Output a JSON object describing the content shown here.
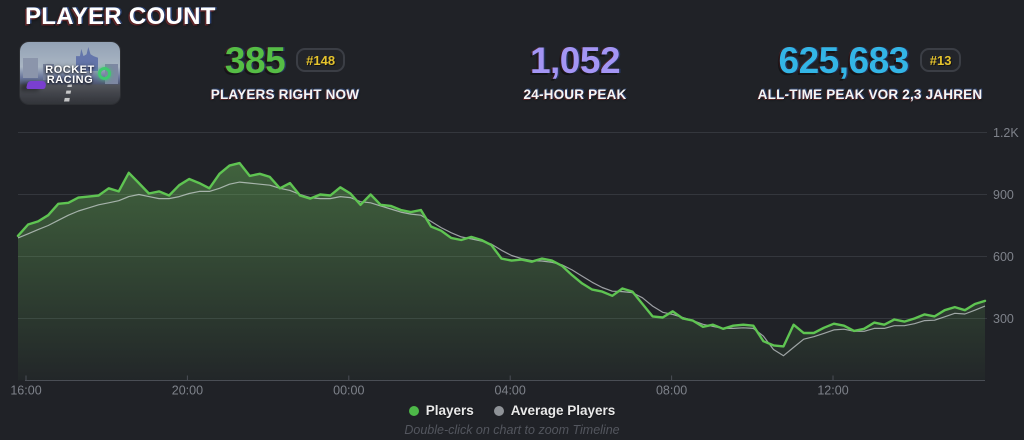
{
  "page": {
    "title": "PLAYER COUNT"
  },
  "game": {
    "name": "Rocket Racing",
    "thumb_line1": "ROCKET",
    "thumb_line2": "RACING"
  },
  "stats": [
    {
      "value": "385",
      "badge": "#148",
      "label": "PLAYERS RIGHT NOW",
      "color": "#55bd45"
    },
    {
      "value": "1,052",
      "badge": "",
      "label": "24-HOUR PEAK",
      "color": "#a495f4"
    },
    {
      "value": "625,683",
      "badge": "#13",
      "label": "ALL-TIME PEAK VOR 2,3 JAHREN",
      "color": "#33b5e6"
    }
  ],
  "legend": [
    {
      "label": "Players",
      "color": "#4db848"
    },
    {
      "label": "Average Players",
      "color": "#8f9398"
    }
  ],
  "footer": {
    "hint": "Double-click on chart to zoom Timeline"
  },
  "chart_data": {
    "type": "area",
    "title": "Player count, last 24 hours",
    "xlabel": "",
    "ylabel": "",
    "x_ticks": [
      "16:00",
      "20:00",
      "00:00",
      "04:00",
      "08:00",
      "12:00"
    ],
    "y_ticks": [
      300,
      600,
      900,
      1200
    ],
    "y_tick_labels": [
      "300",
      "600",
      "900",
      "1.2K"
    ],
    "ylim": [
      0,
      1270
    ],
    "grid": true,
    "legend_position": "bottom",
    "colors": {
      "grid": "#34373d",
      "axis": "#4a4e55",
      "tick_text": "#7e828a",
      "area_fill": "#76cc62"
    },
    "series": [
      {
        "name": "Players",
        "color": "#5fc452",
        "values": [
          700,
          755,
          770,
          800,
          855,
          860,
          885,
          890,
          895,
          930,
          915,
          1005,
          955,
          905,
          915,
          895,
          945,
          975,
          955,
          930,
          1000,
          1040,
          1052,
          990,
          1000,
          985,
          930,
          955,
          895,
          880,
          900,
          895,
          935,
          905,
          850,
          900,
          850,
          845,
          825,
          815,
          825,
          745,
          725,
          690,
          680,
          695,
          680,
          655,
          590,
          580,
          585,
          575,
          590,
          580,
          555,
          510,
          470,
          440,
          430,
          410,
          445,
          430,
          370,
          310,
          305,
          335,
          300,
          290,
          260,
          270,
          250,
          265,
          270,
          265,
          190,
          170,
          165,
          270,
          230,
          230,
          255,
          275,
          265,
          240,
          250,
          280,
          270,
          295,
          285,
          300,
          320,
          310,
          340,
          355,
          340,
          370,
          385
        ]
      },
      {
        "name": "Average Players",
        "color": "#dfe3e7",
        "values": [
          690,
          710,
          730,
          750,
          775,
          800,
          820,
          835,
          850,
          860,
          870,
          890,
          900,
          890,
          880,
          880,
          890,
          905,
          915,
          915,
          930,
          950,
          960,
          955,
          950,
          945,
          930,
          920,
          900,
          885,
          880,
          880,
          890,
          885,
          865,
          860,
          845,
          830,
          815,
          805,
          800,
          770,
          740,
          715,
          695,
          685,
          675,
          660,
          630,
          605,
          590,
          580,
          578,
          572,
          560,
          535,
          505,
          475,
          450,
          432,
          430,
          425,
          400,
          360,
          330,
          320,
          305,
          290,
          272,
          262,
          252,
          252,
          255,
          252,
          215,
          150,
          120,
          160,
          200,
          212,
          228,
          245,
          248,
          238,
          238,
          252,
          252,
          265,
          265,
          275,
          290,
          292,
          308,
          325,
          322,
          340,
          360
        ]
      }
    ]
  }
}
